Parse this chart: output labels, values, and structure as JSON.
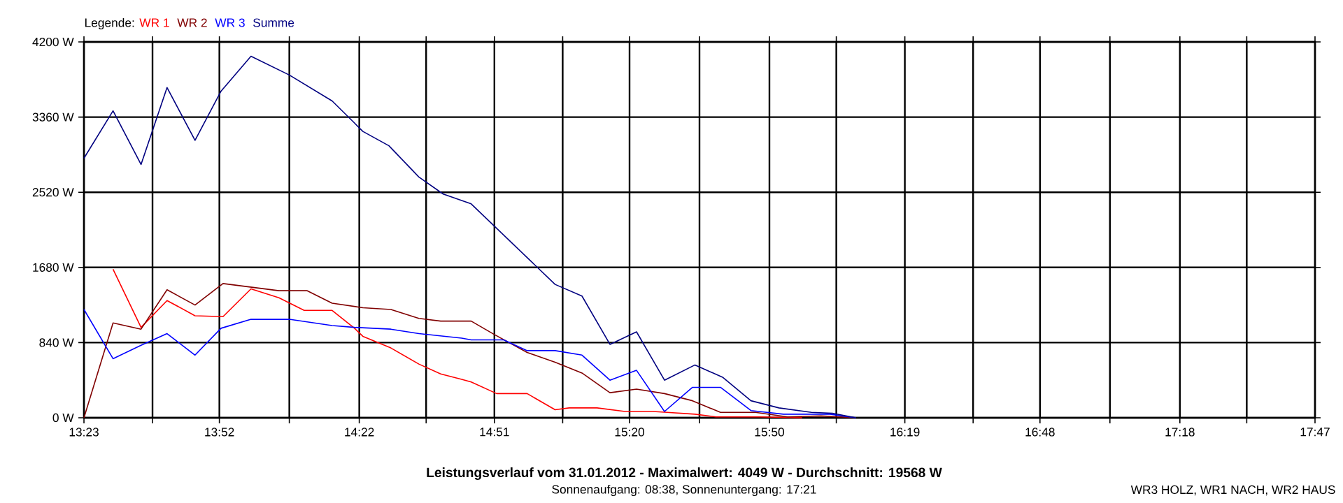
{
  "chart_data": {
    "type": "line",
    "title": "Leistungsverlauf vom 31.01.2012 - Maximalwert: 4049 W - Durchschnitt: 19568 W",
    "subtitle": "Sonnenaufgang: 08:38, Sonnenuntergang: 17:21",
    "annotations": [
      "WR3 HOLZ, WR1 NACH, WR2 HAUS"
    ],
    "legend_title": "Legende:",
    "legend": "top left",
    "grid": true,
    "line_style": "solid",
    "xlim": [
      13.383,
      17.783
    ],
    "ylim": [
      0,
      4200
    ],
    "xticks": [
      {
        "value": 13.383,
        "label": "13:23"
      },
      {
        "value": 13.628,
        "label": null
      },
      {
        "value": 13.867,
        "label": "13:52"
      },
      {
        "value": 14.117,
        "label": null
      },
      {
        "value": 14.367,
        "label": "14:22"
      },
      {
        "value": 14.606,
        "label": null
      },
      {
        "value": 14.85,
        "label": "14:51"
      },
      {
        "value": 15.094,
        "label": null
      },
      {
        "value": 15.333,
        "label": "15:20"
      },
      {
        "value": 15.583,
        "label": null
      },
      {
        "value": 15.833,
        "label": "15:50"
      },
      {
        "value": 16.072,
        "label": null
      },
      {
        "value": 16.317,
        "label": "16:19"
      },
      {
        "value": 16.561,
        "label": null
      },
      {
        "value": 16.8,
        "label": "16:48"
      },
      {
        "value": 17.05,
        "label": null
      },
      {
        "value": 17.3,
        "label": "17:18"
      },
      {
        "value": 17.539,
        "label": null
      },
      {
        "value": 17.783,
        "label": "17:47"
      }
    ],
    "yticks": [
      {
        "value": 0,
        "label": "0 W"
      },
      {
        "value": 840,
        "label": "840 W"
      },
      {
        "value": 1680,
        "label": "1680 W"
      },
      {
        "value": 2520,
        "label": "2520 W"
      },
      {
        "value": 3360,
        "label": "3360 W"
      },
      {
        "value": 4200,
        "label": "4200 W"
      }
    ],
    "series": [
      {
        "name": "WR 1",
        "color": "#ff0000",
        "x": [
          13.487,
          13.587,
          13.68,
          13.78,
          13.88,
          13.98,
          14.08,
          14.17,
          14.27,
          14.35,
          14.38,
          14.48,
          14.58,
          14.658,
          14.733,
          14.767,
          14.858,
          14.967,
          15.067,
          15.117,
          15.217,
          15.317,
          15.417,
          15.467,
          15.567,
          15.642,
          15.8,
          15.95
        ],
        "values": [
          1660,
          1010,
          1310,
          1140,
          1130,
          1440,
          1340,
          1200,
          1200,
          1000,
          910,
          780,
          600,
          490,
          430,
          400,
          270,
          270,
          90,
          110,
          110,
          70,
          70,
          60,
          40,
          10,
          10,
          0
        ]
      },
      {
        "name": "WR 2",
        "color": "#800000",
        "x": [
          13.383,
          13.487,
          13.587,
          13.68,
          13.78,
          13.88,
          13.98,
          14.08,
          14.18,
          14.27,
          14.38,
          14.48,
          14.58,
          14.658,
          14.767,
          14.85,
          14.967,
          15.067,
          15.163,
          15.263,
          15.358,
          15.458,
          15.558,
          15.658,
          15.783,
          15.898,
          16.017,
          16.142
        ],
        "values": [
          0,
          1060,
          990,
          1430,
          1260,
          1500,
          1460,
          1420,
          1420,
          1280,
          1230,
          1210,
          1110,
          1080,
          1080,
          930,
          730,
          620,
          500,
          280,
          320,
          270,
          190,
          60,
          60,
          10,
          20,
          0
        ]
      },
      {
        "name": "WR 3",
        "color": "#0000ff",
        "x": [
          13.383,
          13.487,
          13.587,
          13.68,
          13.78,
          13.873,
          13.98,
          14.117,
          14.27,
          14.35,
          14.48,
          14.58,
          14.733,
          14.767,
          14.883,
          14.967,
          15.067,
          15.163,
          15.263,
          15.358,
          15.458,
          15.558,
          15.658,
          15.767,
          15.883,
          16.05,
          16.142
        ],
        "values": [
          1210,
          660,
          810,
          940,
          700,
          1000,
          1100,
          1100,
          1030,
          1010,
          990,
          940,
          890,
          870,
          870,
          750,
          750,
          700,
          420,
          530,
          70,
          340,
          340,
          80,
          40,
          40,
          0
        ]
      },
      {
        "name": "Summe",
        "color": "#000080",
        "x": [
          13.383,
          13.487,
          13.587,
          13.68,
          13.78,
          13.873,
          13.98,
          14.117,
          14.27,
          14.348,
          14.38,
          14.473,
          14.58,
          14.667,
          14.767,
          15.067,
          15.163,
          15.263,
          15.358,
          15.458,
          15.567,
          15.667,
          15.767,
          15.867,
          15.983,
          16.058,
          16.142
        ],
        "values": [
          2900,
          3430,
          2830,
          3690,
          3100,
          3650,
          4040,
          3830,
          3540,
          3300,
          3200,
          3040,
          2690,
          2500,
          2390,
          1490,
          1360,
          820,
          960,
          420,
          590,
          450,
          190,
          110,
          60,
          50,
          0
        ]
      }
    ]
  }
}
